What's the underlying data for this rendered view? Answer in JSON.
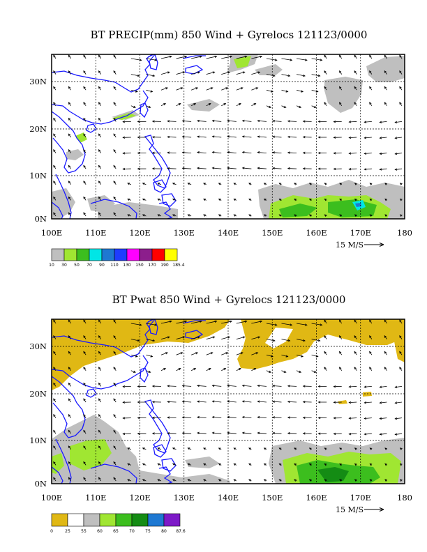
{
  "colors": {
    "coast": "#1a1aff",
    "precip_levels": [
      "#bfbfbf",
      "#a0e632",
      "#3cbe1e",
      "#00e6e6",
      "#1e78d2",
      "#1e3cff",
      "#ff00ff",
      "#8c1e8c",
      "#ff0000",
      "#ffff00"
    ],
    "pwat_levels": [
      "#e0b814",
      "#ffffff",
      "#bfbfbf",
      "#a0e632",
      "#3cbe1e",
      "#148c14",
      "#1e78d2",
      "#7d19c8"
    ]
  },
  "panels": [
    {
      "title": "BT PRECIP(mm) 850 Wind + Gyrelocs 121123/0000",
      "x_ticks": [
        "100E",
        "110E",
        "120E",
        "130E",
        "140E",
        "150E",
        "160E",
        "170E",
        "180"
      ],
      "y_ticks": [
        "0N",
        "10N",
        "20N",
        "30N"
      ],
      "reference_vector_label": "15 M/S",
      "colorbar_labels": [
        "10",
        "30",
        "50",
        "70",
        "90",
        "110",
        "130",
        "150",
        "170",
        "190",
        "185.4"
      ]
    },
    {
      "title": "BT Pwat 850 Wind + Gyrelocs 121123/0000",
      "x_ticks": [
        "100E",
        "110E",
        "120E",
        "130E",
        "140E",
        "150E",
        "160E",
        "170E",
        "180"
      ],
      "y_ticks": [
        "0N",
        "10N",
        "20N",
        "30N"
      ],
      "reference_vector_label": "15 M/S",
      "colorbar_labels": [
        "0",
        "25",
        "55",
        "60",
        "65",
        "70",
        "75",
        "80",
        "87.6"
      ]
    }
  ]
}
